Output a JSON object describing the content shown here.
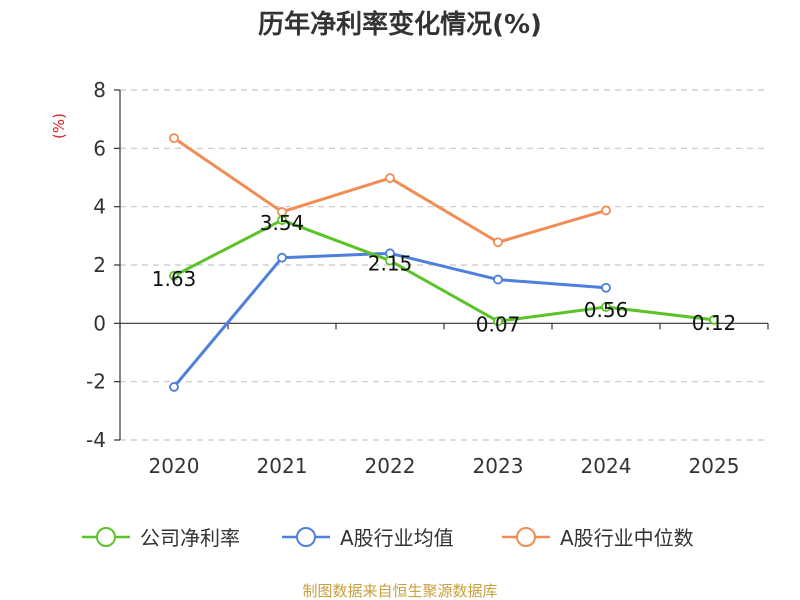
{
  "chart_data": {
    "type": "line",
    "title": "历年净利率变化情况(%)",
    "ylabel": "(%)",
    "xlabel": "",
    "categories": [
      "2020",
      "2021",
      "2022",
      "2023",
      "2024",
      "2025"
    ],
    "ylim": [
      -4,
      8
    ],
    "yticks": [
      "8",
      "6",
      "4",
      "2",
      "0",
      "-2",
      "-4"
    ],
    "grid": true,
    "legend_position": "bottom",
    "series": [
      {
        "name": "公司净利率",
        "color": "#5bc228",
        "values": [
          1.63,
          3.54,
          2.15,
          0.07,
          0.56,
          0.12
        ],
        "labels": [
          "1.63",
          "3.54",
          "2.15",
          "0.07",
          "0.56",
          "0.12"
        ]
      },
      {
        "name": "A股行业均值",
        "color": "#4f7fdc",
        "values": [
          -2.18,
          2.25,
          2.4,
          1.5,
          1.22,
          null
        ]
      },
      {
        "name": "A股行业中位数",
        "color": "#f28c55",
        "values": [
          6.35,
          3.82,
          4.98,
          2.78,
          3.87,
          null
        ]
      }
    ],
    "source": "制图数据来自恒生聚源数据库"
  }
}
